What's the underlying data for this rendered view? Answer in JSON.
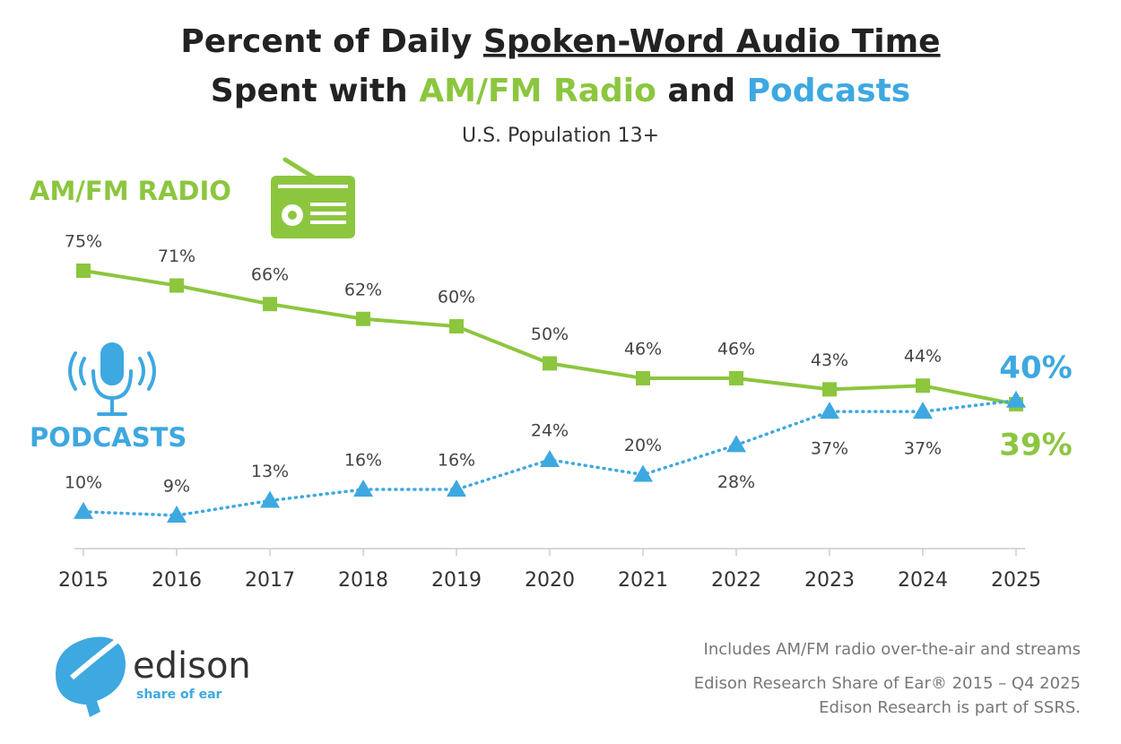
{
  "chart_data": {
    "type": "line",
    "title": [
      "Percent of Daily ",
      "Spoken-Word Audio Time",
      "Spent with ",
      "AM/FM Radio",
      " and ",
      "Podcasts"
    ],
    "subtitle": "U.S. Population 13+",
    "categories": [
      "2015",
      "2016",
      "2017",
      "2018",
      "2019",
      "2020",
      "2021",
      "2022",
      "2023",
      "2024",
      "2025"
    ],
    "series": [
      {
        "name": "AM/FM RADIO",
        "color": "#8cc63f",
        "marker": "square",
        "dash": "solid",
        "values": [
          75,
          71,
          66,
          62,
          60,
          50,
          46,
          46,
          43,
          44,
          39
        ],
        "value_labels": [
          "75%",
          "71%",
          "66%",
          "62%",
          "60%",
          "50%",
          "46%",
          "46%",
          "43%",
          "44%",
          "39%"
        ]
      },
      {
        "name": "PODCASTS",
        "color": "#3ea8e0",
        "marker": "triangle",
        "dash": "dotted",
        "values": [
          10,
          9,
          13,
          16,
          16,
          24,
          20,
          28,
          37,
          37,
          40
        ],
        "value_labels": [
          "10%",
          "9%",
          "13%",
          "16%",
          "16%",
          "24%",
          "20%",
          "28%",
          "37%",
          "37%",
          "40%"
        ]
      }
    ],
    "notes": [
      "Includes AM/FM radio over-the-air and streams",
      "Edison Research Share of Ear® 2015 – Q4 2025",
      "Edison Research is part of SSRS."
    ],
    "logo": {
      "name": "edison",
      "tagline": "share of ear"
    }
  }
}
